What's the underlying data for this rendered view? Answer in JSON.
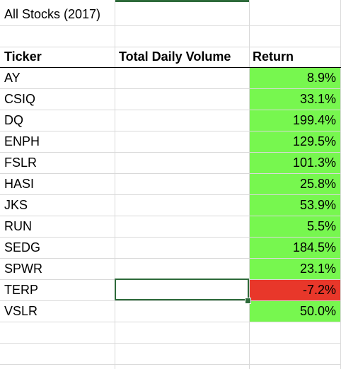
{
  "sheet": {
    "title_cell": "All Stocks (2017)",
    "headers": {
      "ticker": "Ticker",
      "volume": "Total Daily Volume",
      "return": "Return"
    },
    "rows": [
      {
        "ticker": "AY",
        "volume": "",
        "return": "8.9%",
        "status": "positive"
      },
      {
        "ticker": "CSIQ",
        "volume": "",
        "return": "33.1%",
        "status": "positive"
      },
      {
        "ticker": "DQ",
        "volume": "",
        "return": "199.4%",
        "status": "positive"
      },
      {
        "ticker": "ENPH",
        "volume": "",
        "return": "129.5%",
        "status": "positive"
      },
      {
        "ticker": "FSLR",
        "volume": "",
        "return": "101.3%",
        "status": "positive"
      },
      {
        "ticker": "HASI",
        "volume": "",
        "return": "25.8%",
        "status": "positive"
      },
      {
        "ticker": "JKS",
        "volume": "",
        "return": "53.9%",
        "status": "positive"
      },
      {
        "ticker": "RUN",
        "volume": "",
        "return": "5.5%",
        "status": "positive"
      },
      {
        "ticker": "SEDG",
        "volume": "",
        "return": "184.5%",
        "status": "positive"
      },
      {
        "ticker": "SPWR",
        "volume": "",
        "return": "23.1%",
        "status": "positive"
      },
      {
        "ticker": "TERP",
        "volume": "",
        "return": "-7.2%",
        "status": "negative"
      },
      {
        "ticker": "VSLR",
        "volume": "",
        "return": "50.0%",
        "status": "positive"
      }
    ],
    "colors": {
      "positive": "#77f74f",
      "negative": "#e8372a",
      "selection": "#2d6a3a",
      "gridline": "#d9d9d9"
    }
  }
}
